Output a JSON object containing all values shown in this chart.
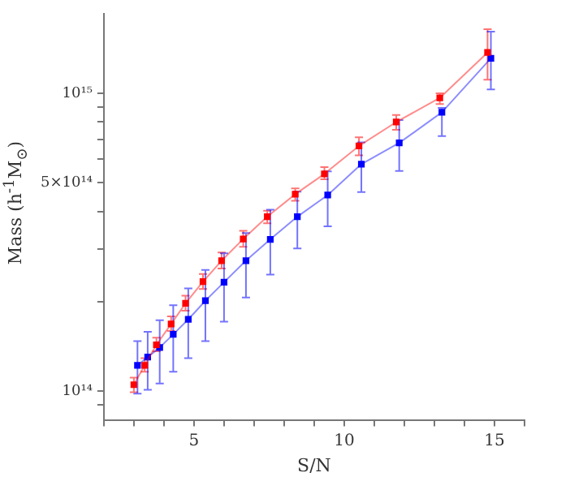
{
  "chart_data": {
    "type": "line",
    "xlabel": "S/N",
    "ylabel": "Mass (h$^{-1}$M$_{⊙}$)",
    "log": "y",
    "grid": false,
    "marker": "square",
    "xlim": [
      2,
      16
    ],
    "ylim": [
      80000000000000.0,
      1850000000000000.0
    ],
    "xticks": [
      {
        "value": 2,
        "label": null
      },
      {
        "value": 3,
        "label": null
      },
      {
        "value": 4,
        "label": null
      },
      5,
      {
        "value": 6,
        "label": null
      },
      {
        "value": 7,
        "label": null
      },
      {
        "value": 8,
        "label": null
      },
      {
        "value": 9,
        "label": null
      },
      10,
      {
        "value": 11,
        "label": null
      },
      {
        "value": 12,
        "label": null
      },
      {
        "value": 13,
        "label": null
      },
      {
        "value": 14,
        "label": null
      },
      15,
      {
        "value": 16,
        "label": null
      }
    ],
    "yticks": [
      {
        "value": 90000000000000.0,
        "label": null
      },
      {
        "value": 100000000000000.0,
        "label": "10¹⁴"
      },
      {
        "value": 200000000000000.0,
        "label": null
      },
      {
        "value": 300000000000000.0,
        "label": null
      },
      {
        "value": 400000000000000.0,
        "label": null
      },
      {
        "value": 500000000000000.0,
        "label": "5×10¹⁴"
      },
      {
        "value": 600000000000000.0,
        "label": null
      },
      {
        "value": 700000000000000.0,
        "label": null
      },
      {
        "value": 800000000000000.0,
        "label": null
      },
      {
        "value": 900000000000000.0,
        "label": null
      },
      {
        "value": 1000000000000000.0,
        "label": "10¹⁵"
      }
    ],
    "series": [
      {
        "color": "#ff0000",
        "x": [
          3.0,
          3.36,
          3.75,
          4.24,
          4.72,
          5.3,
          5.92,
          6.64,
          7.44,
          8.37,
          9.34,
          10.49,
          11.73,
          13.18,
          14.77
        ],
        "values": [
          105000000000000.0,
          122000000000000.0,
          143000000000000.0,
          168000000000000.0,
          197000000000000.0,
          233000000000000.0,
          274000000000000.0,
          324000000000000.0,
          385000000000000.0,
          458000000000000.0,
          536000000000000.0,
          665000000000000.0,
          800000000000000.0,
          964000000000000.0,
          1370000000000000.0
        ],
        "errors": [
          [
            99000000000000.0,
            111000000000000.0
          ],
          [
            116000000000000.0,
            129000000000000.0
          ],
          [
            136000000000000.0,
            151000000000000.0
          ],
          [
            159000000000000.0,
            178000000000000.0
          ],
          [
            186000000000000.0,
            209000000000000.0
          ],
          [
            220000000000000.0,
            247000000000000.0
          ],
          [
            258000000000000.0,
            292000000000000.0
          ],
          [
            305000000000000.0,
            345000000000000.0
          ],
          [
            366000000000000.0,
            403000000000000.0
          ],
          [
            435000000000000.0,
            479000000000000.0
          ],
          [
            514000000000000.0,
            565000000000000.0
          ],
          [
            618000000000000.0,
            711000000000000.0
          ],
          [
            753000000000000.0,
            845000000000000.0
          ],
          [
            920000000000000.0,
            1000000000000000.0
          ],
          [
            1110000000000000.0,
            1640000000000000.0
          ]
        ]
      },
      {
        "color": "#0000ff",
        "x": [
          3.12,
          3.46,
          3.86,
          4.31,
          4.81,
          5.38,
          6.0,
          6.73,
          7.54,
          8.44,
          9.45,
          10.57,
          11.83,
          13.25,
          14.88
        ],
        "values": [
          122000000000000.0,
          130000000000000.0,
          140000000000000.0,
          155000000000000.0,
          174000000000000.0,
          201000000000000.0,
          232000000000000.0,
          274000000000000.0,
          323000000000000.0,
          385000000000000.0,
          455000000000000.0,
          578000000000000.0,
          681000000000000.0,
          863000000000000.0,
          1310000000000000.0
        ],
        "errors": [
          [
            98000000000000.0,
            147000000000000.0
          ],
          [
            101000000000000.0,
            158000000000000.0
          ],
          [
            106000000000000.0,
            173000000000000.0
          ],
          [
            116000000000000.0,
            194000000000000.0
          ],
          [
            129000000000000.0,
            221000000000000.0
          ],
          [
            147000000000000.0,
            255000000000000.0
          ],
          [
            171000000000000.0,
            290000000000000.0
          ],
          [
            206000000000000.0,
            339000000000000.0
          ],
          [
            246000000000000.0,
            406000000000000.0
          ],
          [
            301000000000000.0,
            467000000000000.0
          ],
          [
            357000000000000.0,
            546000000000000.0
          ],
          [
            466000000000000.0,
            684000000000000.0
          ],
          [
            548000000000000.0,
            813000000000000.0
          ],
          [
            718000000000000.0,
            893000000000000.0
          ],
          [
            1030000000000000.0,
            1610000000000000.0
          ]
        ]
      }
    ]
  }
}
